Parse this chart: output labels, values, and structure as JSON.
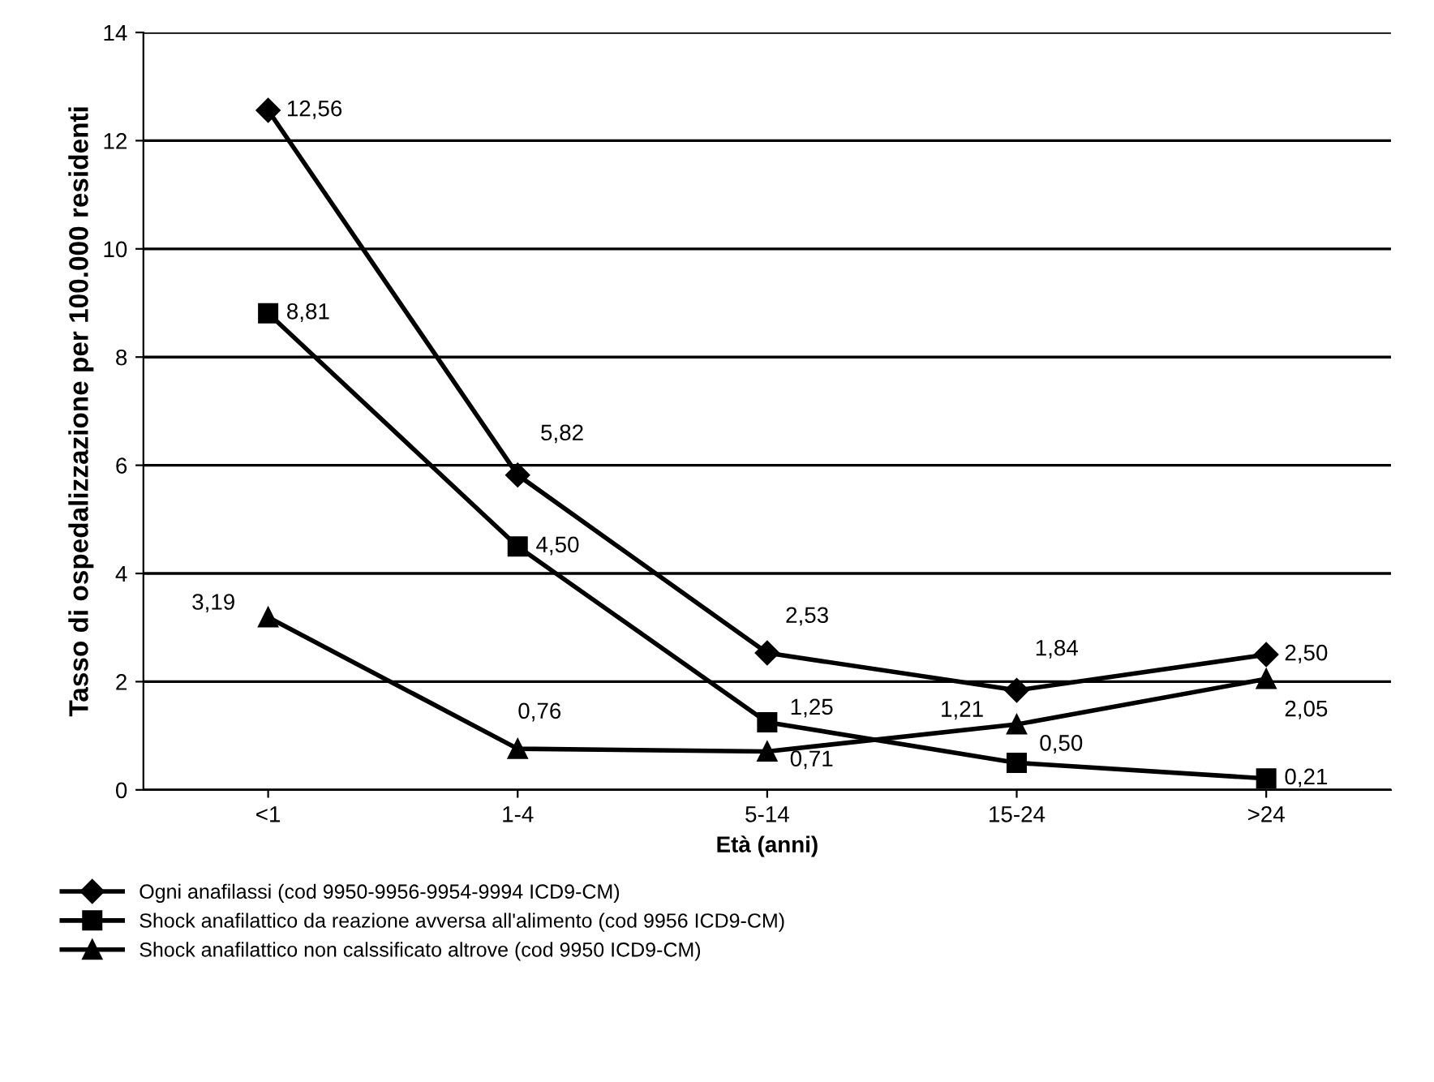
{
  "chart_data": {
    "type": "line",
    "xlabel": "Età (anni)",
    "ylabel": "Tasso di ospedalizzazione per 100.000 residenti",
    "categories": [
      "<1",
      "1-4",
      "5-14",
      "15-24",
      ">24"
    ],
    "series": [
      {
        "name": "Ogni anafilassi (cod 9950-9956-9954-9994 ICD9-CM)",
        "color": "#000000",
        "marker": "diamond",
        "values": [
          12.56,
          5.82,
          2.53,
          1.84,
          2.5
        ],
        "value_labels": [
          "12,56",
          "5,82",
          "2,53",
          "1,84",
          "2,50"
        ]
      },
      {
        "name": "Shock anafilattico da reazione avversa all'alimento (cod 9956 ICD9-CM)",
        "color": "#000000",
        "marker": "square",
        "values": [
          8.81,
          4.5,
          1.25,
          0.5,
          0.21
        ],
        "value_labels": [
          "8,81",
          "4,50",
          "1,25",
          "0,50",
          "0,21"
        ]
      },
      {
        "name": "Shock anafilattico non calssificato altrove (cod 9950 ICD9-CM)",
        "color": "#000000",
        "marker": "triangle",
        "values": [
          3.19,
          0.76,
          0.71,
          1.21,
          2.05
        ],
        "value_labels": [
          "3,19",
          "0,76",
          "0,71",
          "1,21",
          "2,05"
        ]
      }
    ],
    "ylim": [
      0,
      14
    ],
    "yticks": [
      0,
      2,
      4,
      6,
      8,
      10,
      12,
      14
    ],
    "grid": "y",
    "legend": "bottom",
    "line_style": "solid"
  }
}
